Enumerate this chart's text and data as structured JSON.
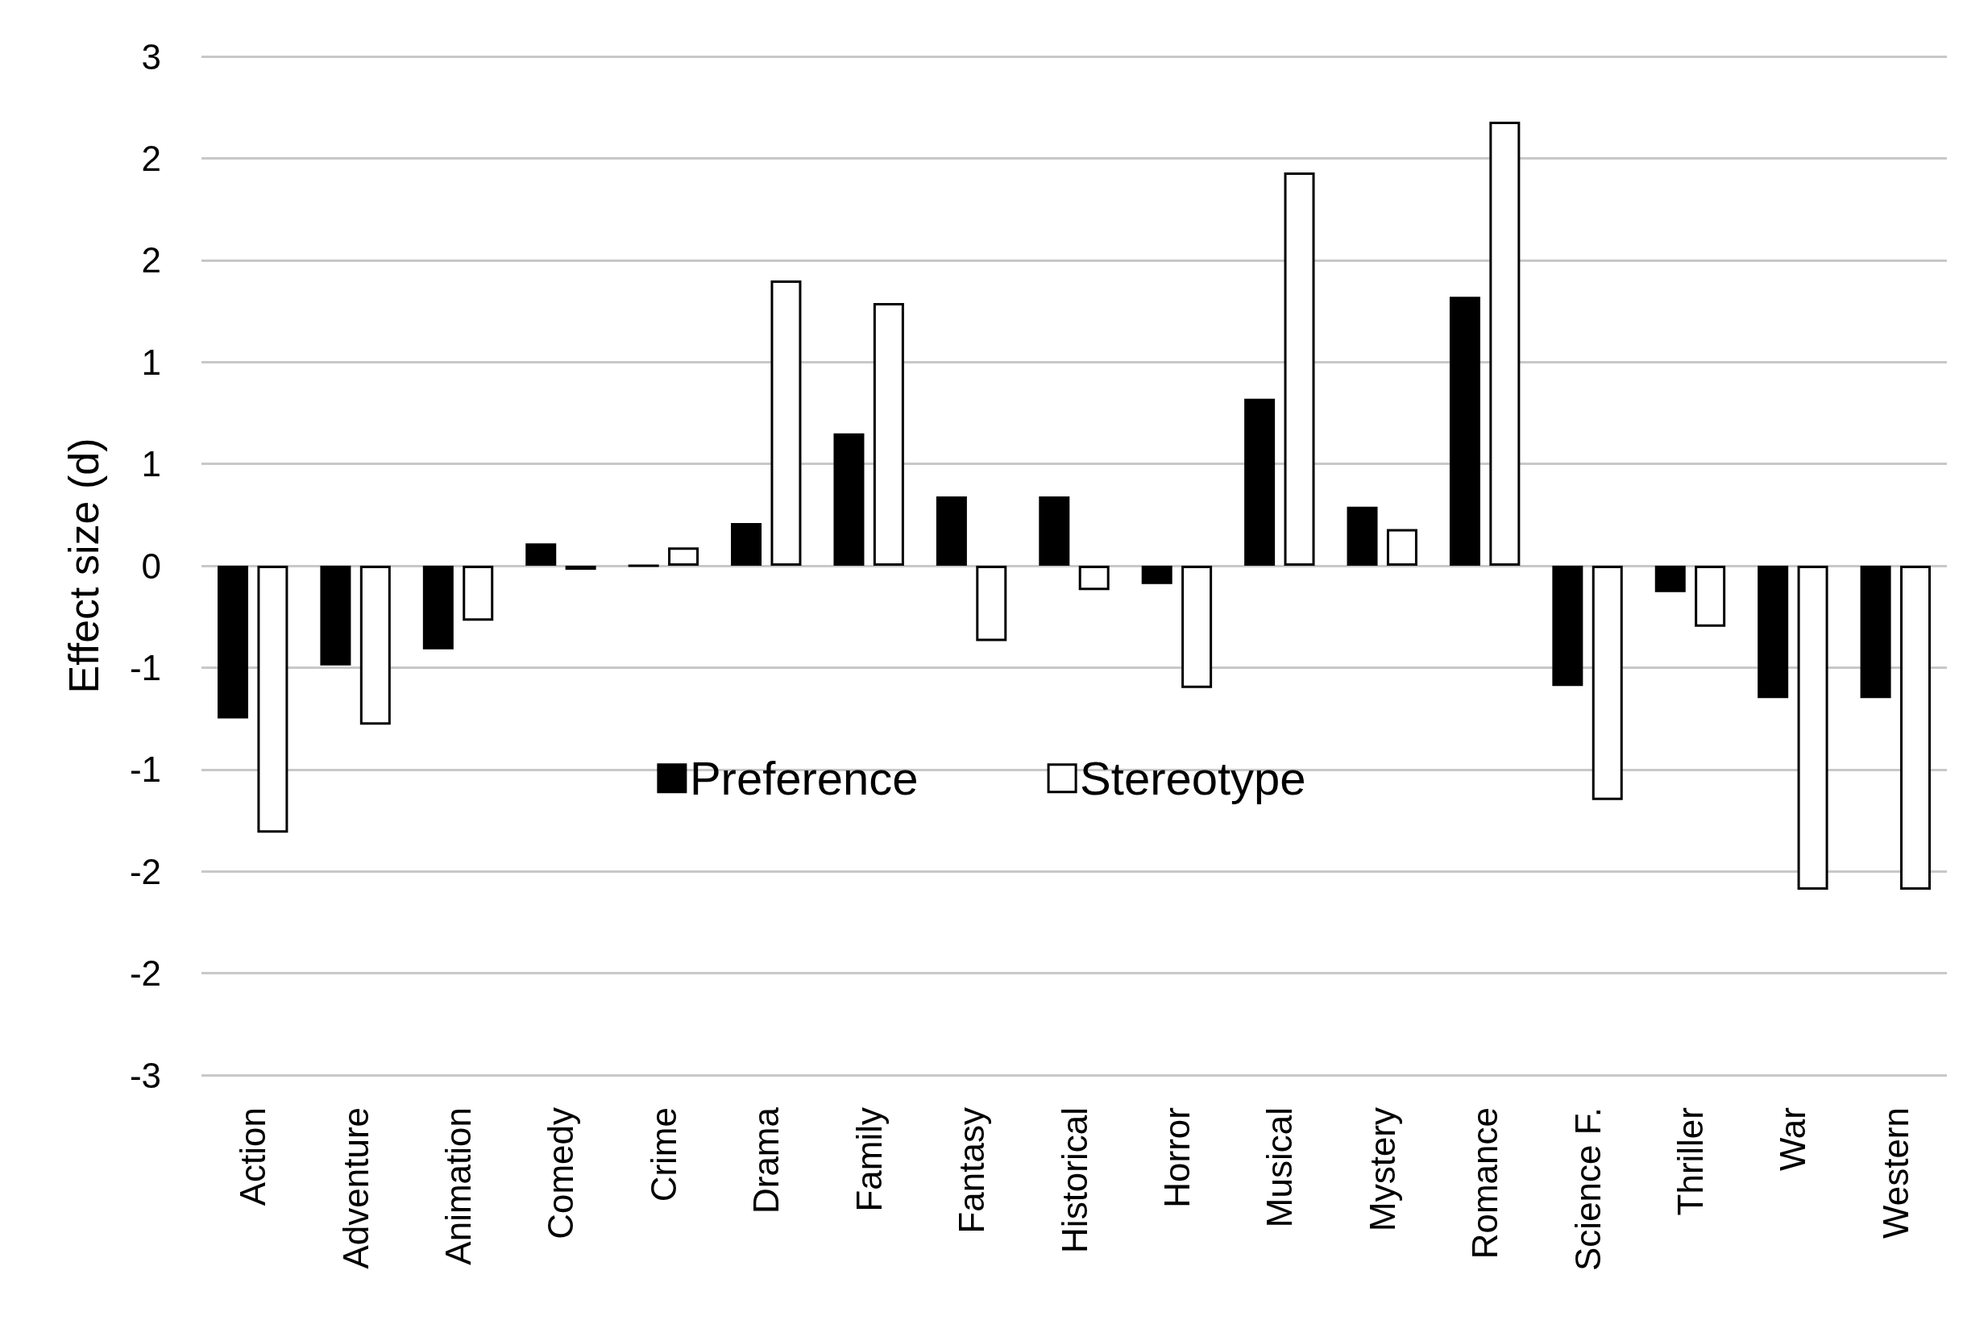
{
  "chart_data": {
    "type": "bar",
    "ylabel": "Effect size (d)",
    "categories": [
      "Action",
      "Adventure",
      "Animation",
      "Comedy",
      "Crime",
      "Drama",
      "Family",
      "Fantasy",
      "Historical",
      "Horror",
      "Musical",
      "Mystery",
      "Romance",
      "Science F.",
      "Thriller",
      "War",
      "Western"
    ],
    "series": [
      {
        "name": "Preference",
        "color": "#000000",
        "values": [
          -0.75,
          -0.49,
          -0.41,
          0.11,
          0,
          0.21,
          0.65,
          0.34,
          0.34,
          -0.09,
          0.82,
          0.29,
          1.32,
          -0.59,
          -0.13,
          -0.65,
          -0.65
        ]
      },
      {
        "name": "Stereotype",
        "color": "#ffffff",
        "values": [
          -1.31,
          -0.78,
          -0.27,
          -0.02,
          0.09,
          1.4,
          1.29,
          -0.37,
          -0.12,
          -0.6,
          1.93,
          0.18,
          2.18,
          -1.15,
          -0.3,
          -1.59,
          -1.59
        ]
      }
    ],
    "ylim": [
      -2.5,
      2.5
    ],
    "yticks": [
      {
        "value": -2.5,
        "label": "-3"
      },
      {
        "value": -2,
        "label": "-2"
      },
      {
        "value": -1.5,
        "label": "-2"
      },
      {
        "value": -1,
        "label": "-1"
      },
      {
        "value": -0.5,
        "label": "-1"
      },
      {
        "value": 0,
        "label": "0"
      },
      {
        "value": 0.5,
        "label": "1"
      },
      {
        "value": 1,
        "label": "1"
      },
      {
        "value": 1.5,
        "label": "2"
      },
      {
        "value": 2,
        "label": "2"
      },
      {
        "value": 2.5,
        "label": "3"
      }
    ],
    "grid": "y",
    "legend": "center"
  }
}
